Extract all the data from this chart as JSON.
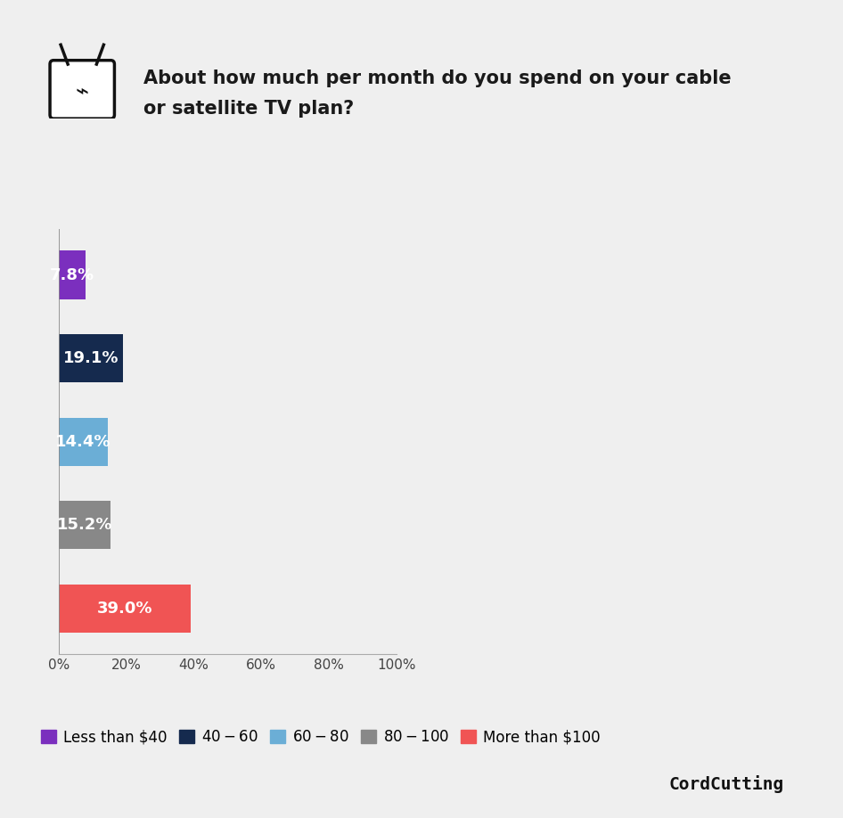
{
  "title_line1": "About how much per month do you spend on your cable",
  "title_line2": "or satellite TV plan?",
  "categories": [
    "Less than $40",
    "$40 - $60",
    "$60 - $80",
    "$80 - $100",
    "More than $100"
  ],
  "values": [
    7.8,
    19.1,
    14.4,
    15.2,
    39.0
  ],
  "bar_colors": [
    "#7B2FBE",
    "#152A4E",
    "#6BAED6",
    "#888888",
    "#F05454"
  ],
  "label_colors": [
    "#ffffff",
    "#ffffff",
    "#ffffff",
    "#ffffff",
    "#ffffff"
  ],
  "xlim": [
    0,
    100
  ],
  "xticks": [
    0,
    20,
    40,
    60,
    80,
    100
  ],
  "xtick_labels": [
    "0%",
    "20%",
    "40%",
    "60%",
    "80%",
    "100%"
  ],
  "background_color": "#efefef",
  "bar_label_fontsize": 13,
  "title_fontsize": 15,
  "legend_fontsize": 12,
  "watermark": "CordCutting",
  "bar_height": 0.58
}
